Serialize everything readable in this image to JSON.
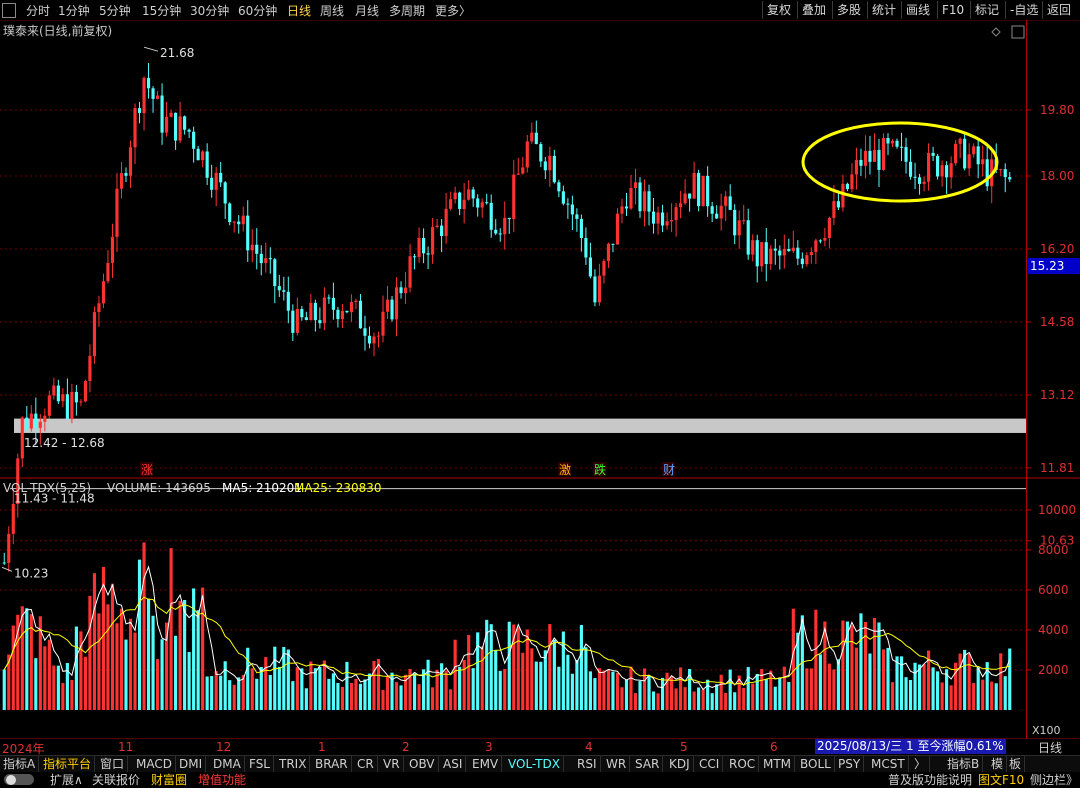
{
  "toolbar": {
    "periods": [
      "分时",
      "1分钟",
      "5分钟",
      "15分钟",
      "30分钟",
      "60分钟",
      "日线",
      "周线",
      "月线",
      "多周期",
      "更多〉"
    ],
    "active_period": "日线",
    "right_buttons": [
      "复权",
      "叠加",
      "多股",
      "统计",
      "画线",
      "F10",
      "标记",
      "-自选",
      "返回"
    ]
  },
  "stock_title": "璞泰来(日线,前复权)",
  "price_axis": [
    "19.80",
    "18.00",
    "16.20",
    "14.58",
    "13.12",
    "11.81",
    "10.63"
  ],
  "current_price": "15.23",
  "annotations": {
    "high": "21.68",
    "low": "10.23",
    "zone1": "12.42 - 12.68",
    "zone2": "11.43 - 11.48"
  },
  "event_markers": [
    "涨",
    "激",
    "跌",
    "财"
  ],
  "volume_header": {
    "name": "VOL-TDX(5,25)",
    "volume": "VOLUME: 143695",
    "ma5": "MA5: 210201",
    "ma25": "MA25: 230830"
  },
  "volume_axis": [
    "10000",
    "8000",
    "6000",
    "4000",
    "2000"
  ],
  "volume_unit": "X100",
  "x_axis": {
    "months": [
      "2024年",
      "11",
      "12",
      "1",
      "2",
      "3",
      "4",
      "5",
      "6"
    ],
    "date_readout": "2025/08/13/三  1  至今涨幅0.61%",
    "period_label": "日线"
  },
  "indicator_tabs": [
    "指标A",
    "指标平台",
    "窗口",
    "MACD",
    "DMI",
    "DMA",
    "FSL",
    "TRIX",
    "BRAR",
    "CR",
    "VR",
    "OBV",
    "ASI",
    "EMV",
    "VOL-TDX",
    "RSI",
    "WR",
    "SAR",
    "KDJ",
    "CCI",
    "ROC",
    "MTM",
    "BOLL",
    "PSY",
    "MCST",
    "〉"
  ],
  "active_indicator": "VOL-TDX",
  "indicator_right": [
    "指标B",
    "模",
    "板"
  ],
  "footer": {
    "toggle": "",
    "items": [
      "扩展∧",
      "关联报价",
      "财富圈",
      "增值功能"
    ],
    "right": [
      "普及版功能说明",
      "图文F10",
      "侧边栏》"
    ]
  },
  "colors": {
    "up": "#ff3232",
    "down": "#54ffff",
    "ma5": "#ffffff",
    "ma25": "#ffff00",
    "highlight": "#ffff00"
  },
  "chart_data": {
    "type": "candlestick",
    "start": 12.3,
    "scale": "log",
    "ylim": [
      10.2,
      22.0
    ],
    "vol_ylim": [
      0,
      11000
    ]
  }
}
